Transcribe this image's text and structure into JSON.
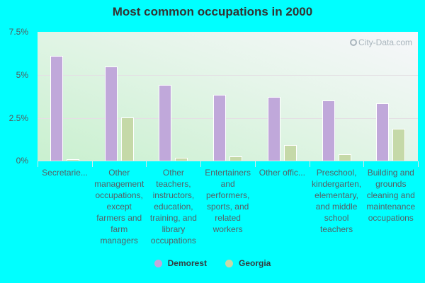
{
  "title": "Most common occupations in 2000",
  "watermark": "City-Data.com",
  "colors": {
    "background": "#00ffff",
    "demorest": "#c0a8da",
    "georgia": "#c5d9a8",
    "title": "#333333"
  },
  "y_axis": {
    "ticks": [
      "0%",
      "2.5%",
      "5%",
      "7.5%"
    ]
  },
  "legend": [
    {
      "name": "Demorest",
      "color": "#c0a8da"
    },
    {
      "name": "Georgia",
      "color": "#c5d9a8"
    }
  ],
  "chart_data": {
    "type": "bar",
    "title": "Most common occupations in 2000",
    "xlabel": "",
    "ylabel": "",
    "ylim": [
      0,
      7.5
    ],
    "yticks": [
      0,
      2.5,
      5,
      7.5
    ],
    "ytick_labels": [
      "0%",
      "2.5%",
      "5%",
      "7.5%"
    ],
    "grid": true,
    "legend_position": "bottom",
    "categories": [
      "Secretarie...",
      "Other management occupations, except farmers and farm managers",
      "Other teachers, instructors, education, training, and library occupations",
      "Entertainers and performers, sports, and related workers",
      "Other offic...",
      "Preschool, kindergarten, elementary, and middle school teachers",
      "Building and grounds cleaning and maintenance occupations"
    ],
    "series": [
      {
        "name": "Demorest",
        "color": "#c0a8da",
        "values": [
          6.1,
          5.5,
          4.4,
          3.85,
          3.7,
          3.5,
          3.35
        ]
      },
      {
        "name": "Georgia",
        "color": "#c5d9a8",
        "values": [
          0.1,
          2.5,
          0.15,
          0.25,
          0.9,
          0.37,
          1.85
        ]
      }
    ]
  }
}
